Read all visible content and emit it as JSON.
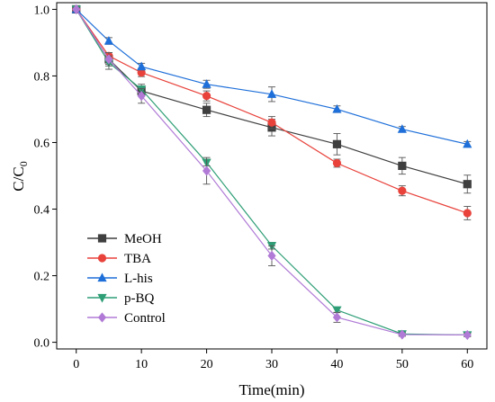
{
  "chart_data": {
    "type": "line",
    "title": "",
    "xlabel": "Time(min)",
    "ylabel": "C/C",
    "ylabel_subscript": "0",
    "xlim": [
      -3,
      63
    ],
    "ylim": [
      -0.02,
      1.02
    ],
    "xticks": [
      0,
      10,
      20,
      30,
      40,
      50,
      60
    ],
    "yticks": [
      0.0,
      0.2,
      0.4,
      0.6,
      0.8,
      1.0
    ],
    "ytick_labels": [
      "0.0",
      "0.2",
      "0.4",
      "0.6",
      "0.8",
      "1.0"
    ],
    "grid": false,
    "legend_position": "bottom-left",
    "x": [
      0,
      5,
      10,
      20,
      30,
      40,
      50,
      60
    ],
    "series": [
      {
        "name": "MeOH",
        "color": "#3f3f3f",
        "marker": "square",
        "values": [
          1.0,
          0.85,
          0.755,
          0.698,
          0.645,
          0.595,
          0.53,
          0.475
        ],
        "errors": [
          0.005,
          0.015,
          0.012,
          0.02,
          0.025,
          0.032,
          0.025,
          0.027
        ]
      },
      {
        "name": "TBA",
        "color": "#e8423b",
        "marker": "circle",
        "values": [
          1.0,
          0.86,
          0.81,
          0.74,
          0.66,
          0.538,
          0.455,
          0.388
        ],
        "errors": [
          0.005,
          0.01,
          0.012,
          0.015,
          0.018,
          0.012,
          0.015,
          0.02
        ]
      },
      {
        "name": "L-his",
        "color": "#1e6fd9",
        "marker": "triangle-up",
        "values": [
          1.0,
          0.905,
          0.828,
          0.775,
          0.745,
          0.7,
          0.64,
          0.595
        ],
        "errors": [
          0.005,
          0.01,
          0.01,
          0.012,
          0.022,
          0.01,
          0.008,
          0.008
        ]
      },
      {
        "name": "p-BQ",
        "color": "#2e9e76",
        "marker": "triangle-down",
        "values": [
          1.0,
          0.84,
          0.76,
          0.54,
          0.29,
          0.097,
          0.025,
          0.022
        ],
        "errors": [
          0.005,
          0.02,
          0.015,
          0.01,
          0.01,
          0.008,
          0.005,
          0.005
        ]
      },
      {
        "name": "Control",
        "color": "#b07ad6",
        "marker": "diamond",
        "values": [
          1.0,
          0.85,
          0.74,
          0.515,
          0.26,
          0.075,
          0.023,
          0.022
        ],
        "errors": [
          0.005,
          0.02,
          0.022,
          0.04,
          0.03,
          0.015,
          0.005,
          0.005
        ]
      }
    ]
  }
}
